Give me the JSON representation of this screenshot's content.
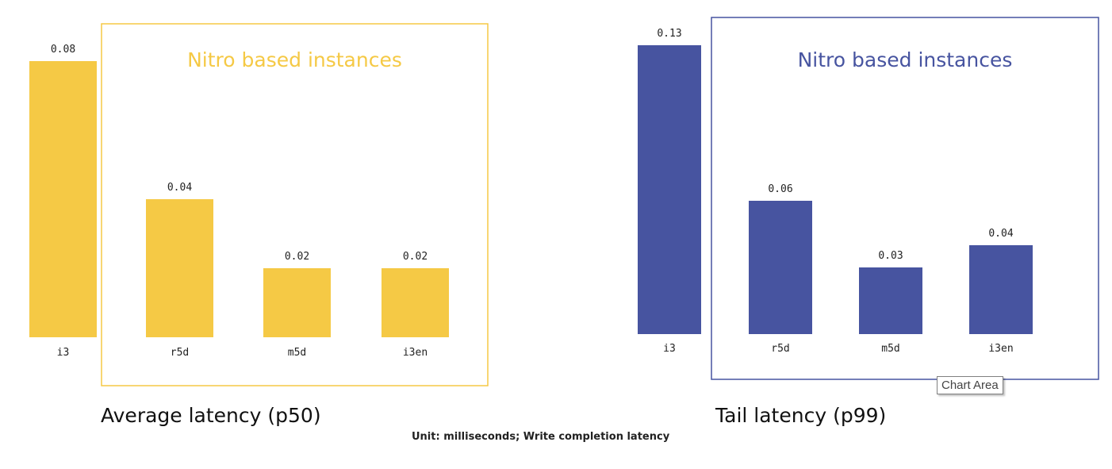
{
  "chart_data": [
    {
      "type": "bar",
      "title": "Average latency (p50)",
      "categories": [
        "i3",
        "r5d",
        "m5d",
        "i3en"
      ],
      "values": [
        0.08,
        0.04,
        0.02,
        0.02
      ],
      "value_labels": [
        "0.08",
        "0.04",
        "0.02",
        "0.02"
      ],
      "color": "#F5C945",
      "group_box": {
        "title": "Nitro based instances",
        "categories": [
          "r5d",
          "m5d",
          "i3en"
        ],
        "color": "#F5C945"
      }
    },
    {
      "type": "bar",
      "title": "Tail latency (p99)",
      "categories": [
        "i3",
        "r5d",
        "m5d",
        "i3en"
      ],
      "values": [
        0.13,
        0.06,
        0.03,
        0.04
      ],
      "value_labels": [
        "0.13",
        "0.06",
        "0.03",
        "0.04"
      ],
      "color": "#4754A0",
      "group_box": {
        "title": "Nitro based instances",
        "categories": [
          "r5d",
          "m5d",
          "i3en"
        ],
        "color": "#4754A0"
      }
    }
  ],
  "footer": {
    "unit_note": "Unit: milliseconds; Write completion latency"
  },
  "tooltip": {
    "text": "Chart Area"
  }
}
